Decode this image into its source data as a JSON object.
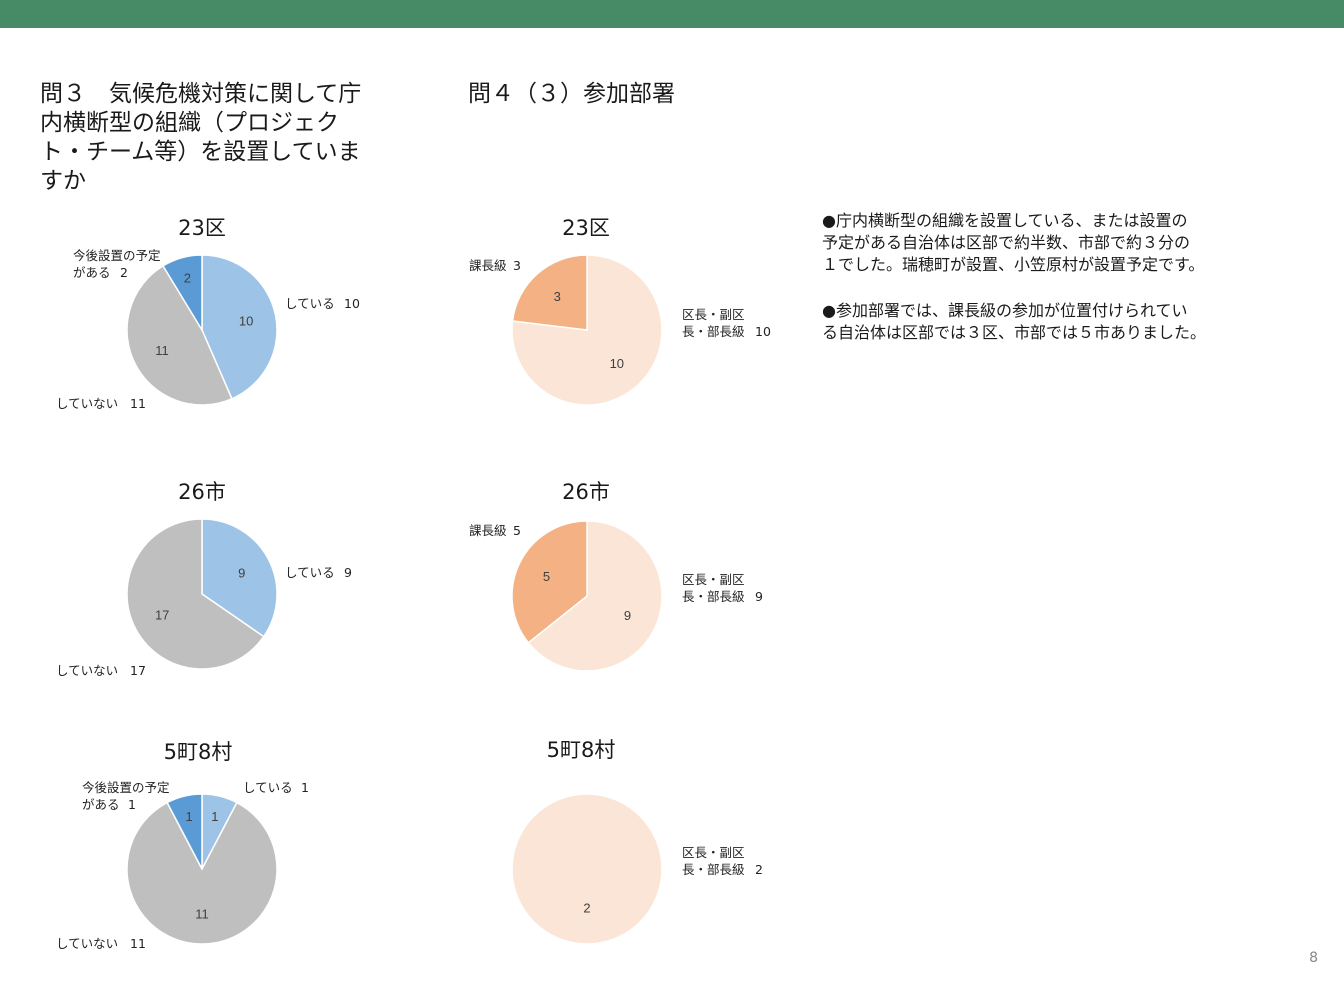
{
  "theme": {
    "header_bar": "#468a66"
  },
  "headings": {
    "q3": "問３　気候危機対策に関して庁内横断型の組織（プロジェクト・チーム等）を設置していますか",
    "q4": "問４（３）参加部署"
  },
  "colors": {
    "shiteiru": "#9dc3e6",
    "yotei": "#5b9bd5",
    "shiteinai": "#bfbfbf",
    "kacho": "#f4b183",
    "kucho": "#fbe5d6"
  },
  "chart_data": [
    {
      "type": "pie",
      "title": "23区",
      "slices": [
        {
          "label": "している",
          "value": 10,
          "color": "#9dc3e6"
        },
        {
          "label": "していない",
          "value": 11,
          "color": "#bfbfbf"
        },
        {
          "label_lines": [
            "今後設置の予定",
            "がある"
          ],
          "value": 2,
          "color": "#5b9bd5"
        }
      ]
    },
    {
      "type": "pie",
      "title": "26市",
      "slices": [
        {
          "label": "している",
          "value": 9,
          "color": "#9dc3e6"
        },
        {
          "label": "していない",
          "value": 17,
          "color": "#bfbfbf"
        }
      ]
    },
    {
      "type": "pie",
      "title": "5町8村",
      "slices": [
        {
          "label": "している",
          "value": 1,
          "color": "#9dc3e6"
        },
        {
          "label": "していない",
          "value": 11,
          "color": "#bfbfbf"
        },
        {
          "label_lines": [
            "今後設置の予定",
            "がある"
          ],
          "value": 1,
          "color": "#5b9bd5"
        }
      ]
    },
    {
      "type": "pie",
      "title": "23区",
      "slices": [
        {
          "label_lines": [
            "区長・副区",
            "長・部長級"
          ],
          "value": 10,
          "color": "#fbe5d6"
        },
        {
          "label": "課長級",
          "value": 3,
          "color": "#f4b183"
        }
      ]
    },
    {
      "type": "pie",
      "title": "26市",
      "slices": [
        {
          "label_lines": [
            "区長・副区",
            "長・部長級"
          ],
          "value": 9,
          "color": "#fbe5d6"
        },
        {
          "label": "課長級",
          "value": 5,
          "color": "#f4b183"
        }
      ]
    },
    {
      "type": "pie",
      "title": "5町8村",
      "slices": [
        {
          "label_lines": [
            "区長・副区",
            "長・部長級"
          ],
          "value": 2,
          "color": "#fbe5d6"
        }
      ]
    }
  ],
  "notes": {
    "p1": [
      "●庁内横断型の組織を設置している、または設置の",
      "予定がある自治体は区部で約半数、市部で約３分の",
      "１でした。瑞穂町が設置、小笠原村が設置予定です。"
    ],
    "p2": [
      "●参加部署では、課長級の参加が位置付けられてい",
      "る自治体は区部では３区、市部では５市ありました。"
    ]
  },
  "page_number": "8"
}
